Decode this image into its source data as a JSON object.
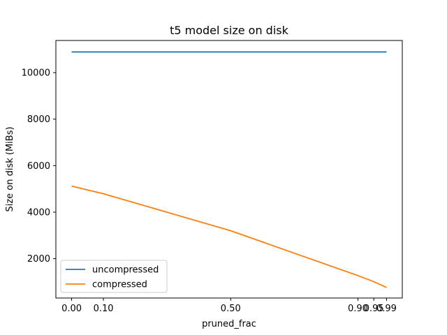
{
  "chart_data": {
    "type": "line",
    "title": "t5 model size on disk",
    "xlabel": "pruned_frac",
    "ylabel": "Size on disk (MiBs)",
    "x": [
      0.0,
      0.1,
      0.5,
      0.9,
      0.95,
      0.99
    ],
    "x_tick_labels": [
      "0.00",
      "0.10",
      "0.50",
      "0.90",
      "0.95",
      "0.99"
    ],
    "xlim": [
      -0.0495,
      1.0395
    ],
    "ylim": [
      307,
      11384
    ],
    "y_ticks": [
      2000,
      4000,
      6000,
      8000,
      10000
    ],
    "y_tick_labels": [
      "2000",
      "4000",
      "6000",
      "8000",
      "10000"
    ],
    "grid": false,
    "legend_position": "lower-left",
    "series": [
      {
        "name": "uncompressed",
        "color": "#1f77b4",
        "values": [
          10890,
          10890,
          10890,
          10890,
          10890,
          10890
        ]
      },
      {
        "name": "compressed",
        "color": "#ff7f0e",
        "values": [
          5120,
          4790,
          3200,
          1270,
          1010,
          760
        ]
      }
    ]
  }
}
